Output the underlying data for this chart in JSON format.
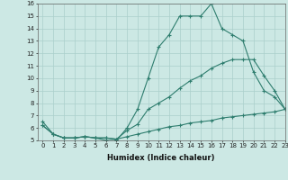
{
  "line1_x": [
    0,
    1,
    2,
    3,
    4,
    5,
    6,
    7,
    8,
    9,
    10,
    11,
    12,
    13,
    14,
    15,
    16,
    17,
    18,
    19,
    20,
    21,
    22,
    23
  ],
  "line1_y": [
    6.5,
    5.5,
    5.2,
    5.2,
    5.3,
    5.2,
    5.0,
    5.0,
    6.0,
    7.5,
    10.0,
    12.5,
    13.5,
    15.0,
    15.0,
    15.0,
    16.0,
    14.0,
    13.5,
    13.0,
    10.5,
    9.0,
    8.5,
    7.5
  ],
  "line2_x": [
    0,
    1,
    2,
    3,
    4,
    5,
    6,
    7,
    8,
    9,
    10,
    11,
    12,
    13,
    14,
    15,
    16,
    17,
    18,
    19,
    20,
    21,
    22,
    23
  ],
  "line2_y": [
    6.2,
    5.5,
    5.2,
    5.2,
    5.3,
    5.2,
    5.2,
    5.1,
    5.8,
    6.3,
    7.5,
    8.0,
    8.5,
    9.2,
    9.8,
    10.2,
    10.8,
    11.2,
    11.5,
    11.5,
    11.5,
    10.2,
    9.0,
    7.5
  ],
  "line3_x": [
    0,
    1,
    2,
    3,
    4,
    5,
    6,
    7,
    8,
    9,
    10,
    11,
    12,
    13,
    14,
    15,
    16,
    17,
    18,
    19,
    20,
    21,
    22,
    23
  ],
  "line3_y": [
    6.2,
    5.5,
    5.2,
    5.2,
    5.3,
    5.2,
    5.2,
    5.1,
    5.3,
    5.5,
    5.7,
    5.9,
    6.1,
    6.2,
    6.4,
    6.5,
    6.6,
    6.8,
    6.9,
    7.0,
    7.1,
    7.2,
    7.3,
    7.5
  ],
  "line_color": "#2e7d6e",
  "bg_color": "#cce8e4",
  "grid_color": "#aacfcb",
  "xlabel": "Humidex (Indice chaleur)",
  "xlim": [
    -0.5,
    23
  ],
  "ylim": [
    5,
    16
  ],
  "yticks": [
    5,
    6,
    7,
    8,
    9,
    10,
    11,
    12,
    13,
    14,
    15,
    16
  ],
  "xticks": [
    0,
    1,
    2,
    3,
    4,
    5,
    6,
    7,
    8,
    9,
    10,
    11,
    12,
    13,
    14,
    15,
    16,
    17,
    18,
    19,
    20,
    21,
    22,
    23
  ],
  "marker": "+",
  "markersize": 3,
  "linewidth": 0.8,
  "tick_fontsize": 5,
  "xlabel_fontsize": 6
}
